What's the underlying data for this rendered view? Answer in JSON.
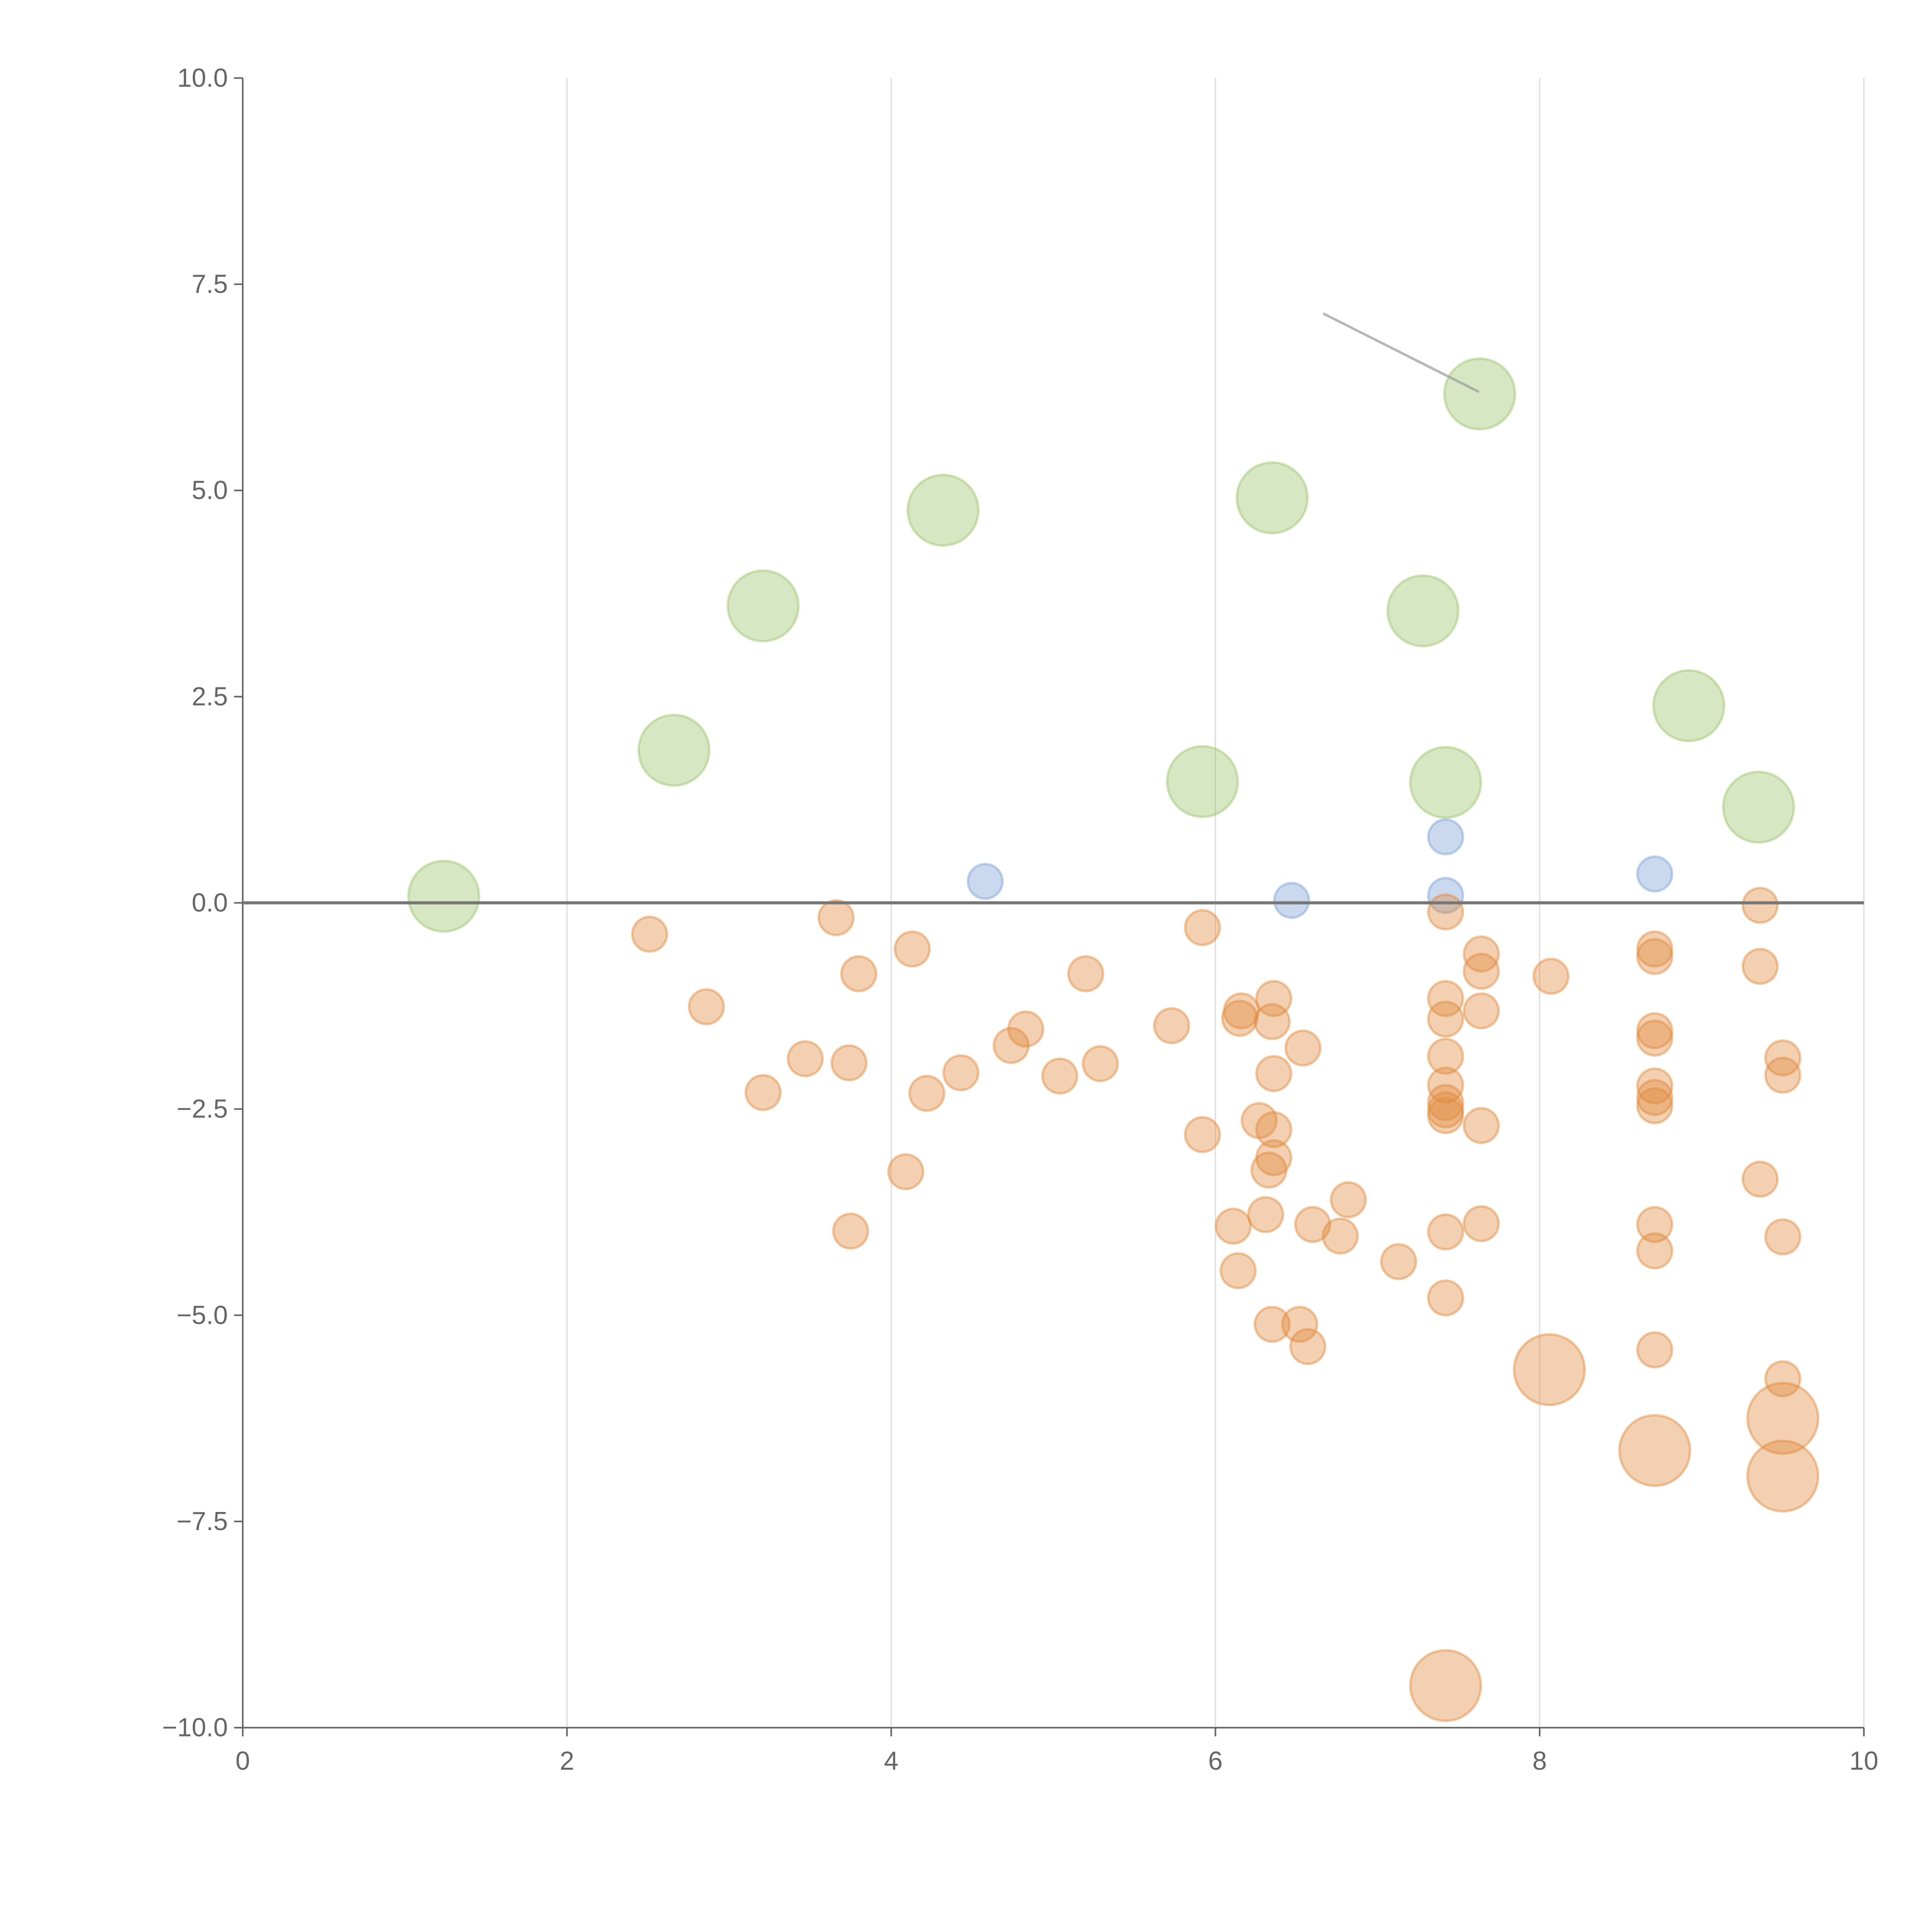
{
  "chart_data": {
    "type": "scatter",
    "title": "",
    "xlabel": "",
    "ylabel": "",
    "xlim": [
      0,
      10
    ],
    "ylim": [
      -10,
      10
    ],
    "grid": "vertical",
    "legend": "none",
    "x_ticks": [
      "0",
      "2",
      "4",
      "6",
      "8",
      "10"
    ],
    "x_tick_values": [
      0,
      2,
      4,
      6,
      8,
      10
    ],
    "y_ticks": [
      "10.0",
      "7.5",
      "5.0",
      "2.5",
      "0.0",
      "−2.5",
      "−5.0",
      "−7.5",
      "−10.0"
    ],
    "y_tick_values": [
      10,
      7.5,
      5,
      2.5,
      0,
      -2.5,
      -5,
      -7.5,
      -10
    ],
    "reference_line_y": 0,
    "annotation_line": {
      "from": [
        6.67,
        7.14
      ],
      "to": [
        7.62,
        6.2
      ]
    },
    "series": [
      {
        "name": "green",
        "color": "#9cc46a",
        "size": 2,
        "points": [
          [
            1.24,
            0.08
          ],
          [
            2.66,
            1.85
          ],
          [
            3.21,
            3.6
          ],
          [
            4.32,
            4.76
          ],
          [
            5.92,
            1.47
          ],
          [
            6.35,
            4.91
          ],
          [
            7.28,
            3.54
          ],
          [
            7.63,
            6.17
          ],
          [
            7.42,
            1.46
          ],
          [
            8.92,
            2.39
          ],
          [
            9.35,
            1.16
          ]
        ]
      },
      {
        "name": "blue",
        "color": "#7a9fd4",
        "size": 1,
        "points": [
          [
            4.58,
            0.26
          ],
          [
            6.47,
            0.03
          ],
          [
            7.42,
            0.8
          ],
          [
            7.42,
            0.09
          ],
          [
            8.71,
            0.35
          ]
        ]
      },
      {
        "name": "orange",
        "color": "#e08a3c",
        "size": 1,
        "points": [
          [
            2.51,
            -0.38
          ],
          [
            2.86,
            -1.26
          ],
          [
            3.21,
            -2.3
          ],
          [
            3.47,
            -1.89
          ],
          [
            3.66,
            -0.18
          ],
          [
            3.74,
            -1.94
          ],
          [
            3.8,
            -0.86
          ],
          [
            3.75,
            -3.98
          ],
          [
            4.13,
            -0.56
          ],
          [
            4.09,
            -3.26
          ],
          [
            4.22,
            -2.31
          ],
          [
            4.43,
            -2.06
          ],
          [
            4.74,
            -1.73
          ],
          [
            4.83,
            -1.53
          ],
          [
            5.04,
            -2.1
          ],
          [
            5.2,
            -0.86
          ],
          [
            5.29,
            -1.95
          ],
          [
            5.73,
            -1.49
          ],
          [
            5.92,
            -0.3
          ],
          [
            5.92,
            -2.81
          ],
          [
            6.11,
            -3.92
          ],
          [
            6.14,
            -4.46
          ],
          [
            6.15,
            -1.4
          ],
          [
            6.16,
            -1.31
          ],
          [
            6.27,
            -2.64
          ],
          [
            6.31,
            -3.78
          ],
          [
            6.33,
            -3.24
          ],
          [
            6.36,
            -3.09
          ],
          [
            6.36,
            -2.75
          ],
          [
            6.36,
            -2.07
          ],
          [
            6.35,
            -1.44
          ],
          [
            6.36,
            -1.16
          ],
          [
            6.35,
            -5.11
          ],
          [
            6.52,
            -5.11
          ],
          [
            6.54,
            -1.76
          ],
          [
            6.57,
            -5.38
          ],
          [
            6.6,
            -3.9
          ],
          [
            6.77,
            -4.04
          ],
          [
            6.82,
            -3.6
          ],
          [
            7.13,
            -4.35
          ],
          [
            7.42,
            -0.11
          ],
          [
            7.42,
            -1.16
          ],
          [
            7.42,
            -1.41
          ],
          [
            7.42,
            -1.86
          ],
          [
            7.42,
            -2.21
          ],
          [
            7.42,
            -2.42
          ],
          [
            7.42,
            -2.51
          ],
          [
            7.42,
            -2.58
          ],
          [
            7.42,
            -3.99
          ],
          [
            7.42,
            -4.79
          ],
          [
            7.64,
            -0.62
          ],
          [
            7.64,
            -0.83
          ],
          [
            7.64,
            -1.31
          ],
          [
            7.64,
            -2.7
          ],
          [
            7.64,
            -3.89
          ],
          [
            8.07,
            -0.89
          ],
          [
            8.71,
            -0.56
          ],
          [
            8.71,
            -0.65
          ],
          [
            8.71,
            -1.55
          ],
          [
            8.71,
            -1.64
          ],
          [
            8.71,
            -2.22
          ],
          [
            8.71,
            -2.36
          ],
          [
            8.71,
            -2.46
          ],
          [
            8.71,
            -3.9
          ],
          [
            8.71,
            -4.22
          ],
          [
            8.71,
            -5.42
          ],
          [
            9.36,
            -0.03
          ],
          [
            9.36,
            -0.77
          ],
          [
            9.36,
            -3.35
          ],
          [
            9.5,
            -1.88
          ],
          [
            9.5,
            -2.09
          ],
          [
            9.5,
            -4.05
          ],
          [
            9.5,
            -5.77
          ]
        ]
      },
      {
        "name": "orange-large",
        "color": "#e08a3c",
        "size": 2,
        "points": [
          [
            8.06,
            -5.66
          ],
          [
            8.71,
            -6.64
          ],
          [
            9.5,
            -6.25
          ],
          [
            9.5,
            -6.95
          ],
          [
            7.42,
            -9.49
          ]
        ]
      }
    ]
  }
}
